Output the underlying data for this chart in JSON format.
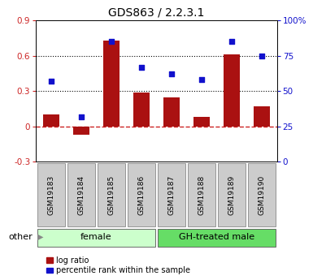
{
  "title": "GDS863 / 2.2.3.1",
  "samples": [
    "GSM19183",
    "GSM19184",
    "GSM19185",
    "GSM19186",
    "GSM19187",
    "GSM19188",
    "GSM19189",
    "GSM19190"
  ],
  "log_ratio": [
    0.1,
    -0.07,
    0.73,
    0.29,
    0.25,
    0.08,
    0.61,
    0.17
  ],
  "percentile_rank": [
    57,
    32,
    85,
    67,
    62,
    58,
    85,
    75
  ],
  "bar_color": "#aa1111",
  "dot_color": "#1111cc",
  "group_labels": [
    "female",
    "GH-treated male"
  ],
  "group_colors_light": [
    "#ccffcc",
    "#66dd66"
  ],
  "ylim_left": [
    -0.3,
    0.9
  ],
  "ylim_right": [
    0,
    100
  ],
  "yticks_left": [
    -0.3,
    0.0,
    0.3,
    0.6,
    0.9
  ],
  "ytick_labels_left": [
    "-0.3",
    "0",
    "0.3",
    "0.6",
    "0.9"
  ],
  "yticks_right": [
    0,
    25,
    50,
    75,
    100
  ],
  "ytick_labels_right": [
    "0",
    "25",
    "50",
    "75",
    "100%"
  ],
  "hlines": [
    0.3,
    0.6
  ],
  "legend_items": [
    "log ratio",
    "percentile rank within the sample"
  ],
  "legend_colors": [
    "#aa1111",
    "#1111cc"
  ],
  "other_label": "other",
  "zero_line_color": "#cc2222",
  "label_bg": "#cccccc",
  "title_fontsize": 10,
  "tick_fontsize": 7.5,
  "sample_fontsize": 6.5,
  "group_fontsize": 8,
  "legend_fontsize": 7
}
